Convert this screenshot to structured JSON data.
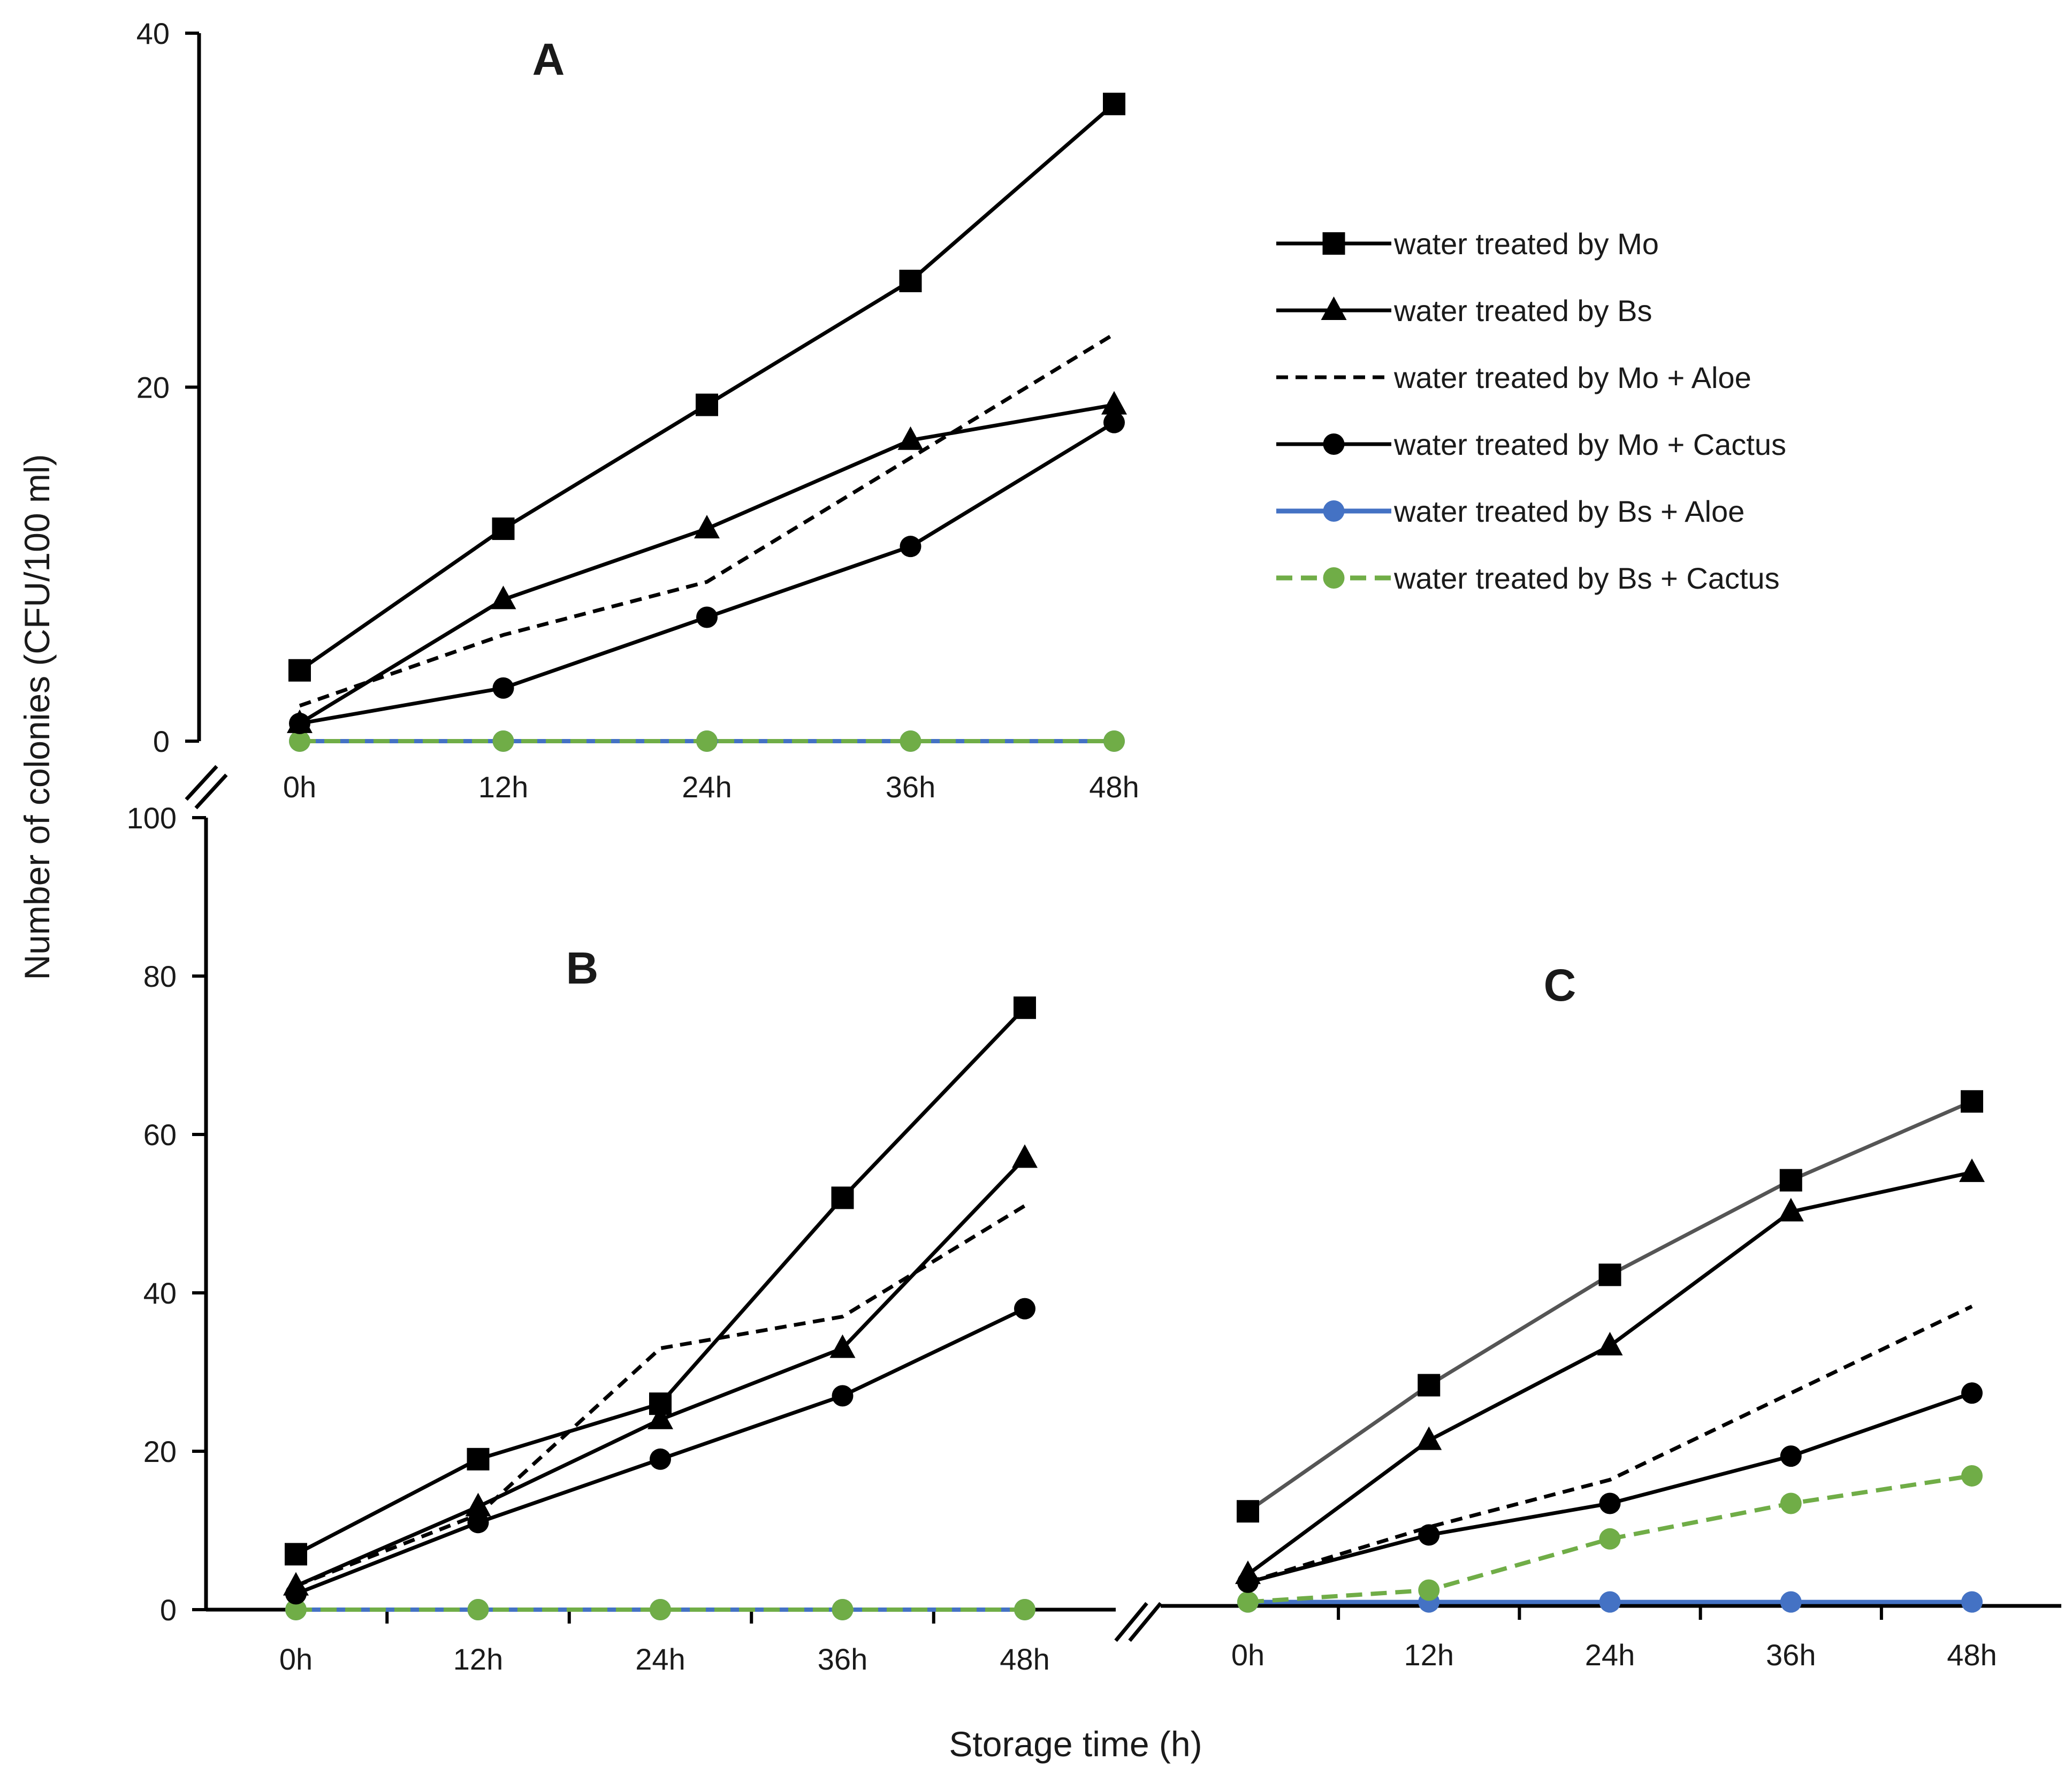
{
  "chart_data": [
    {
      "id": "A",
      "type": "line",
      "title": "A",
      "categories": [
        "0h",
        "12h",
        "24h",
        "36h",
        "48h"
      ],
      "ylim": [
        0,
        40
      ],
      "yticks": [
        "0",
        "20",
        "40"
      ],
      "series": [
        {
          "name": "water treated by Mo",
          "values": [
            4,
            12,
            19,
            26,
            36
          ]
        },
        {
          "name": "water treated by  Bs",
          "values": [
            1,
            8,
            12,
            17,
            19
          ]
        },
        {
          "name": "water treated by Mo + Aloe",
          "values": [
            2,
            6,
            9,
            16,
            23
          ]
        },
        {
          "name": "water treated by Mo + Cactus",
          "values": [
            1,
            3,
            7,
            11,
            18
          ]
        },
        {
          "name": "water treated by Bs + Aloe",
          "values": [
            0,
            0,
            0,
            0,
            0
          ]
        },
        {
          "name": "water treated by Bs + Cactus",
          "values": [
            0,
            0,
            0,
            0,
            0
          ]
        }
      ]
    },
    {
      "id": "B",
      "type": "line",
      "title": "B",
      "categories": [
        "0h",
        "12h",
        "24h",
        "36h",
        "48h"
      ],
      "ylim": [
        0,
        100
      ],
      "yticks": [
        "0",
        "20",
        "40",
        "60",
        "80",
        "100"
      ],
      "series": [
        {
          "name": "water treated by Mo",
          "values": [
            7,
            19,
            26,
            52,
            76
          ]
        },
        {
          "name": "water treated by  Bs",
          "values": [
            3,
            13,
            24,
            33,
            57
          ]
        },
        {
          "name": "water treated by Mo + Aloe",
          "values": [
            3,
            12,
            33,
            37,
            51
          ]
        },
        {
          "name": "water treated by Mo + Cactus",
          "values": [
            2,
            11,
            19,
            27,
            38
          ]
        },
        {
          "name": "water treated by Bs + Aloe",
          "values": [
            0,
            0,
            0,
            0,
            0
          ]
        },
        {
          "name": "water treated by Bs + Cactus",
          "values": [
            0,
            0,
            0,
            0,
            0
          ]
        }
      ]
    },
    {
      "id": "C",
      "type": "line",
      "title": "C",
      "categories": [
        "0h",
        "12h",
        "24h",
        "36h",
        "48h"
      ],
      "ylim": [
        0,
        100
      ],
      "series": [
        {
          "name": "water treated by Mo",
          "values": [
            12,
            28,
            42,
            54,
            64
          ]
        },
        {
          "name": "water treated by  Bs",
          "values": [
            4,
            21,
            33,
            50,
            55
          ]
        },
        {
          "name": "water treated by Mo + Aloe",
          "values": [
            3,
            10,
            16,
            27,
            38
          ]
        },
        {
          "name": "water treated by Mo + Cactus",
          "values": [
            3,
            9,
            13,
            19,
            27
          ]
        },
        {
          "name": "water treated by Bs + Aloe",
          "values": [
            0.5,
            0.5,
            0.5,
            0.5,
            0.5
          ]
        },
        {
          "name": "water treated by Bs + Cactus",
          "values": [
            0.5,
            2,
            8.5,
            13,
            16.5
          ]
        }
      ]
    }
  ],
  "axes": {
    "ylabel": "Number of colonies (CFU/100 ml)",
    "xlabel": "Storage time (h)"
  },
  "legend": {
    "position": "top-right",
    "items": [
      {
        "label": "water treated by Mo",
        "style": "solid",
        "marker": "square",
        "color": "#000000"
      },
      {
        "label": "water treated by  Bs",
        "style": "solid",
        "marker": "triangle",
        "color": "#000000"
      },
      {
        "label": "water treated by Mo + Aloe",
        "style": "dashed",
        "marker": "none",
        "color": "#000000"
      },
      {
        "label": "water treated by Mo + Cactus",
        "style": "solid",
        "marker": "circle",
        "color": "#000000"
      },
      {
        "label": "water treated by Bs + Aloe",
        "style": "solid",
        "marker": "circle",
        "color": "#4472C4"
      },
      {
        "label": "water treated by Bs + Cactus",
        "style": "dashed",
        "marker": "circle",
        "color": "#70AD47"
      }
    ]
  }
}
